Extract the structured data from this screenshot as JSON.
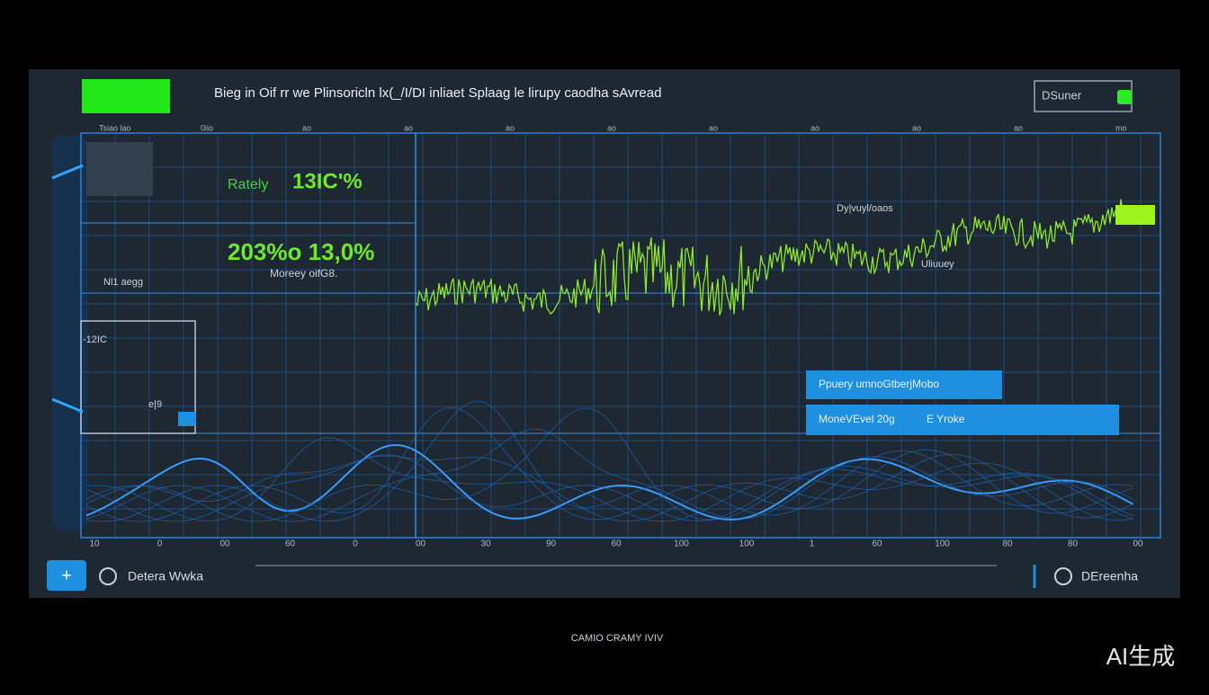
{
  "header": {
    "title": "Bieg in Oif rr we Plinsoricln lx(_/I/DI inliaet Splaag le lirupy caodha sAvread",
    "button": "DSuner"
  },
  "left_panel": {
    "metric_label": "Rately",
    "metric_value": "13IC'%",
    "big_values": "203%o 13,0%",
    "big_caption": "Moreey oifG8.",
    "row_label": "-12IC",
    "list_label": "Nl1 aegg",
    "small_value": "e|9"
  },
  "chart": {
    "top_label": "Dy|vuyl/oaos",
    "mid_label": "Uliuuey",
    "top_axis": [
      "Tsiao lao",
      "0iio",
      "ao",
      "ao",
      "ao",
      "ao",
      "ao",
      "ao",
      "ao",
      "ao",
      "mo"
    ],
    "bottom_axis": [
      "10",
      "0",
      "00",
      "60",
      "0",
      "00",
      "30",
      "90",
      "60",
      "100",
      "100",
      "1",
      "60",
      "100",
      "80",
      "80",
      "00"
    ],
    "buttons": [
      "Ppuery umnoGtberjMobo",
      "MoneVEvel 20g",
      "E Yroke"
    ]
  },
  "footer": {
    "left": "Detera Wwka",
    "right": "DEreenha",
    "caption": "CAMIO CRAMY IVIV",
    "watermark": "AI生成"
  }
}
